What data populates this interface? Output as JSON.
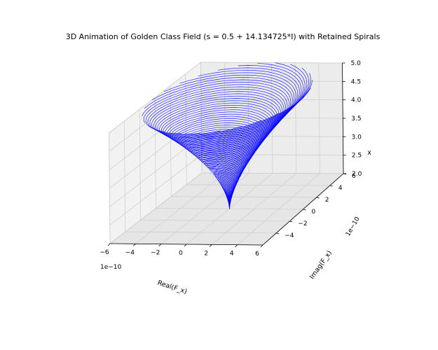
{
  "chart_data": {
    "type": "line",
    "projection": "3d",
    "title": "3D Animation of Golden Class Field (s = 0.5 + 14.134725*I) with Retained Spirals",
    "xlabel": "Real(F_x)",
    "ylabel": "Imag(F_x)",
    "zlabel": "x",
    "x_offset_label": "1e−10",
    "y_offset_label": "1e−10",
    "xlim": [
      -6,
      6
    ],
    "ylim": [
      -6,
      6
    ],
    "zlim": [
      2.0,
      5.0
    ],
    "x_ticks": [
      "−6",
      "−4",
      "−2",
      "0",
      "2",
      "4",
      "6"
    ],
    "y_ticks": [
      "−4",
      "−2",
      "0",
      "2",
      "4",
      "6"
    ],
    "z_ticks": [
      "2.0",
      "2.5",
      "3.0",
      "3.5",
      "4.0",
      "4.5",
      "5.0"
    ],
    "grid": true,
    "series_color": "#0000ff",
    "series": [
      {
        "description": "conical spiral: radius grows with x, tip near x = 2.0 at (0, 0)",
        "x_range": [
          2.0,
          5.0
        ],
        "max_radius_e10": 6,
        "retained_spiral_count": 26
      }
    ]
  }
}
